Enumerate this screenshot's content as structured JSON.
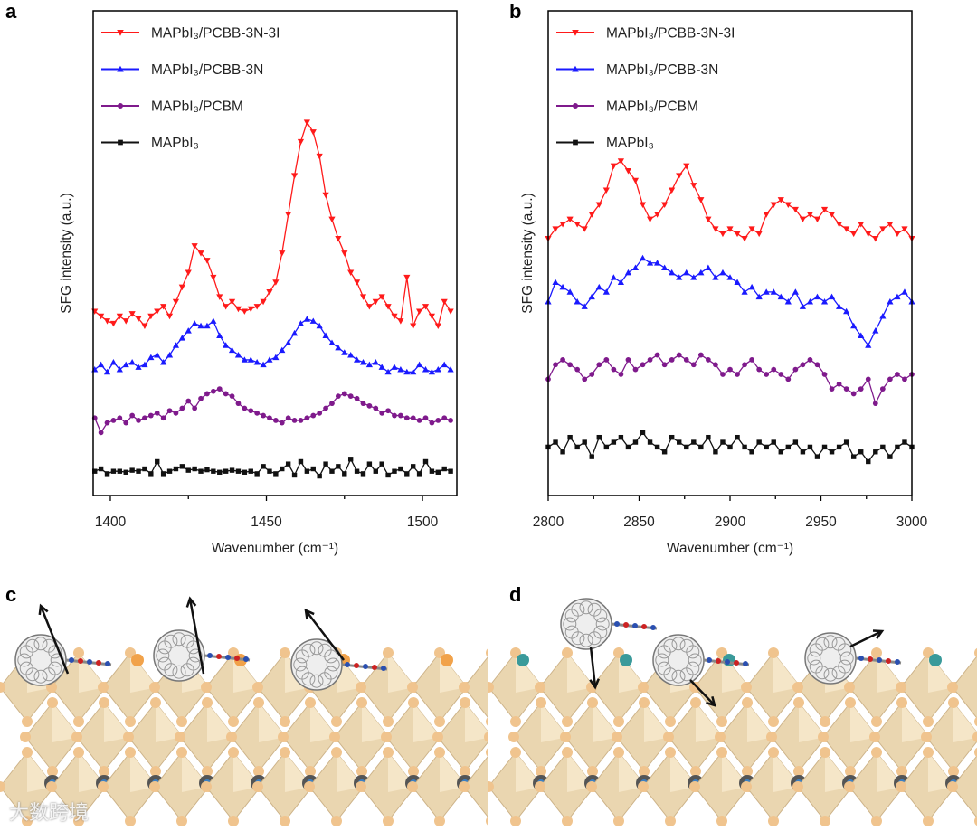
{
  "panel_labels": {
    "a": "a",
    "b": "b",
    "c": "c",
    "d": "d"
  },
  "watermark": "大数跨境",
  "colors": {
    "red": "#ff1a1a",
    "blue": "#1a1aff",
    "purple": "#7f1a8c",
    "black": "#111111",
    "beige": "#ead6b0",
    "sphere": "#f0c48e"
  },
  "chart_data": [
    {
      "type": "line",
      "panel": "a",
      "title": "",
      "xlabel": "Wavenumber (cm⁻¹)",
      "ylabel": "SFG intensity (a.u.)",
      "xlim": [
        1394.5,
        1511
      ],
      "ylim": [
        0,
        100
      ],
      "xticks": [
        1400,
        1425,
        1450,
        1475,
        1500
      ],
      "xtick_labels": [
        "1400",
        "",
        "1450",
        "",
        "1500"
      ],
      "grid": false,
      "legend_position": "top-left",
      "x": {
        "start": 1395,
        "step": 2
      },
      "series": [
        {
          "name": "MAPbI₃/PCBB-3N-3I",
          "color": "#ff1a1a",
          "marker": "triangle-down",
          "values": [
            38,
            37,
            36,
            35.5,
            37,
            36,
            37.5,
            36.5,
            35,
            37,
            38,
            39,
            37,
            40,
            43,
            46,
            51.5,
            50,
            48.5,
            45,
            41,
            39,
            40,
            38.5,
            38,
            38.5,
            39,
            40,
            42,
            44,
            50,
            58,
            66,
            73,
            77,
            75,
            70,
            62,
            57,
            53,
            50,
            46,
            44,
            41,
            39,
            40,
            41,
            39,
            37,
            36,
            45,
            35,
            38,
            39,
            37,
            35,
            40,
            38
          ]
        },
        {
          "name": "MAPbI₃/PCBB-3N",
          "color": "#1a1aff",
          "marker": "triangle-up",
          "values": [
            26,
            27,
            25.5,
            27.5,
            26,
            27,
            27.5,
            26.5,
            27,
            28.5,
            29,
            27.5,
            29,
            31,
            32.5,
            34,
            35.5,
            35,
            35,
            36,
            33,
            31,
            30,
            29,
            28,
            28,
            27.5,
            27,
            28,
            28.5,
            30,
            31.5,
            33.5,
            35.5,
            36.4,
            36,
            35,
            33,
            31.5,
            30.5,
            29.5,
            29,
            28,
            27.5,
            27,
            27.5,
            26.5,
            25.5,
            26.5,
            26,
            25.5,
            25.5,
            27,
            26,
            25.5,
            26,
            27,
            26
          ]
        },
        {
          "name": "MAPbI₃/PCBM",
          "color": "#7f1a8c",
          "marker": "circle",
          "values": [
            16,
            13,
            15,
            15.5,
            16,
            15,
            16.5,
            15.5,
            16,
            16.5,
            17,
            16,
            17.5,
            17,
            18,
            19.5,
            18,
            20,
            21,
            21.5,
            22,
            21,
            20.5,
            19,
            18,
            17.5,
            17,
            16.5,
            16,
            15.5,
            15,
            16,
            15.5,
            15.5,
            16,
            16.5,
            17,
            18,
            19,
            20.5,
            21,
            20.5,
            20,
            19,
            18.5,
            18,
            17,
            17.5,
            16.5,
            16.5,
            16,
            16,
            15.5,
            16,
            15,
            15.5,
            16,
            15.5
          ]
        },
        {
          "name": "MAPbI₃",
          "color": "#111111",
          "marker": "square",
          "values": [
            5,
            5.5,
            4.5,
            5,
            5,
            4.8,
            5.2,
            5,
            5.5,
            4.5,
            7,
            4.5,
            5,
            5.5,
            6,
            5.2,
            5.5,
            5,
            5.3,
            5,
            4.8,
            5,
            5.2,
            5,
            4.8,
            5,
            4.5,
            6,
            5,
            4.5,
            5.5,
            6.5,
            4.2,
            7,
            5,
            5.5,
            4,
            6.5,
            5,
            6,
            4.5,
            7.5,
            5,
            4.5,
            6.5,
            5,
            6.5,
            4.2,
            5,
            5.5,
            4.5,
            6,
            4.5,
            7,
            5,
            4.8,
            5.5,
            5
          ]
        }
      ]
    },
    {
      "type": "line",
      "panel": "b",
      "title": "",
      "xlabel": "Wavenumber (cm⁻¹)",
      "ylabel": "SFG intensity (a.u.)",
      "xlim": [
        2800,
        3000
      ],
      "ylim": [
        0,
        100
      ],
      "xticks": [
        2800,
        2825,
        2850,
        2875,
        2900,
        2925,
        2950,
        2975,
        3000
      ],
      "xtick_labels": [
        "2800",
        "",
        "2850",
        "",
        "2900",
        "",
        "2950",
        "",
        "3000"
      ],
      "grid": false,
      "legend_position": "top-left",
      "x": {
        "start": 2800,
        "step": 4
      },
      "series": [
        {
          "name": "MAPbI₃/PCBB-3N-3I",
          "color": "#ff1a1a",
          "marker": "triangle-down",
          "values": [
            53,
            55,
            56,
            57,
            56,
            55,
            58,
            60,
            63,
            68,
            69,
            67,
            65,
            60,
            57,
            58,
            60,
            63,
            66,
            68,
            64,
            61,
            57,
            55,
            54,
            55,
            54,
            53,
            55,
            54,
            58,
            60,
            61,
            60,
            59,
            57,
            58,
            57,
            59,
            58,
            56,
            55,
            54,
            56,
            54,
            53,
            55,
            56,
            54,
            55,
            53
          ]
        },
        {
          "name": "MAPbI₃/PCBB-3N",
          "color": "#1a1aff",
          "marker": "triangle-up",
          "values": [
            40,
            44,
            43,
            42,
            40,
            39,
            41,
            43,
            42,
            45,
            44,
            46,
            47,
            49,
            48,
            48,
            47,
            46,
            45,
            46,
            45,
            46,
            47,
            45,
            46,
            45,
            44,
            42,
            43,
            41,
            42,
            42,
            41,
            40,
            42,
            39,
            40,
            41,
            40,
            41,
            39,
            38,
            35,
            33,
            31,
            34,
            37,
            40,
            41,
            42,
            40
          ]
        },
        {
          "name": "MAPbI₃/PCBM",
          "color": "#7f1a8c",
          "marker": "circle",
          "values": [
            24,
            27,
            28,
            27,
            26,
            24,
            25,
            27,
            28,
            26,
            25,
            28,
            26,
            27,
            28,
            29,
            27,
            28,
            29,
            28,
            27,
            29,
            28,
            27,
            25,
            26,
            25,
            27,
            28,
            26,
            25,
            26,
            25,
            24,
            26,
            27,
            28,
            27,
            25,
            22,
            23,
            22,
            21,
            22,
            24,
            19,
            22,
            24,
            25,
            24,
            25
          ]
        },
        {
          "name": "MAPbI₃",
          "color": "#111111",
          "marker": "square",
          "values": [
            10,
            11,
            9,
            12,
            10,
            11,
            8,
            12,
            10,
            11,
            12,
            10,
            11,
            13,
            11,
            10,
            9,
            12,
            11,
            10,
            11,
            10,
            12,
            9,
            11,
            10,
            12,
            10,
            9,
            11,
            10,
            11,
            9,
            10,
            11,
            9,
            10,
            8,
            10,
            9,
            10,
            11,
            8,
            9,
            7,
            9,
            10,
            8,
            10,
            11,
            10
          ]
        }
      ]
    }
  ]
}
